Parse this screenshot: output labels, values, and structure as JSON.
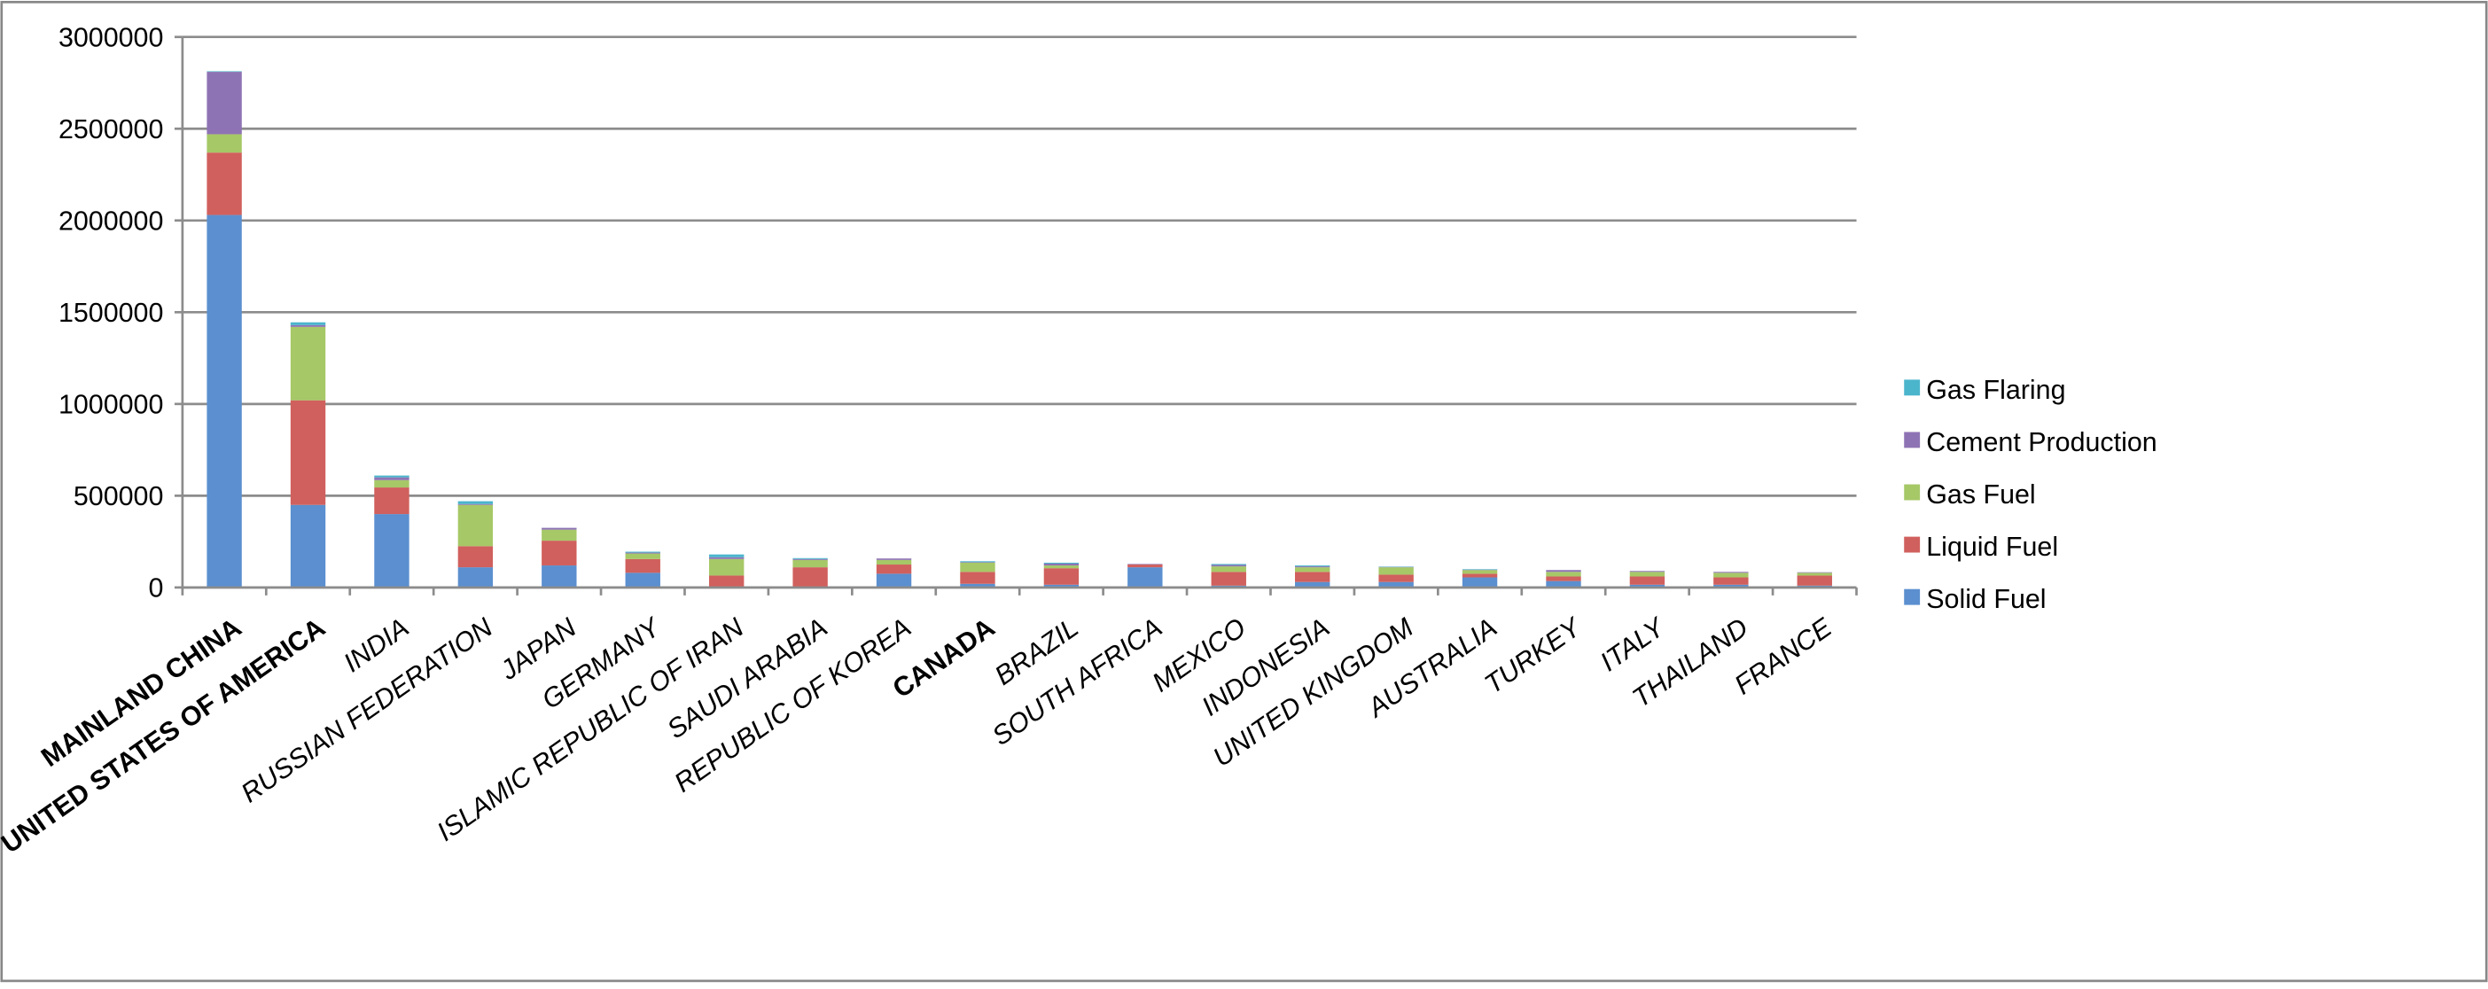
{
  "chart_data": {
    "type": "stacked_bar",
    "categories": [
      "MAINLAND CHINA",
      "UNITED STATES OF AMERICA",
      "INDIA",
      "RUSSIAN FEDERATION",
      "JAPAN",
      "GERMANY",
      "ISLAMIC REPUBLIC OF IRAN",
      "SAUDI ARABIA",
      "REPUBLIC OF KOREA",
      "CANADA",
      "BRAZIL",
      "SOUTH AFRICA",
      "MEXICO",
      "INDONESIA",
      "UNITED KINGDOM",
      "AUSTRALIA",
      "TURKEY",
      "ITALY",
      "THAILAND",
      "FRANCE"
    ],
    "category_styles": [
      "bold",
      "bold",
      "italic",
      "italic",
      "italic",
      "italic",
      "italic",
      "italic",
      "italic",
      "bold",
      "italic",
      "italic",
      "italic",
      "italic",
      "italic",
      "italic",
      "italic",
      "italic",
      "italic",
      "italic"
    ],
    "series": [
      {
        "name": "Solid Fuel",
        "color": "#5b8fcf",
        "values": [
          2030000,
          450000,
          400000,
          110000,
          120000,
          80000,
          5000,
          0,
          75000,
          20000,
          15000,
          110000,
          10000,
          30000,
          30000,
          55000,
          35000,
          15000,
          15000,
          10000
        ]
      },
      {
        "name": "Liquid Fuel",
        "color": "#d0605d",
        "values": [
          340000,
          570000,
          145000,
          115000,
          135000,
          75000,
          60000,
          110000,
          50000,
          65000,
          90000,
          15000,
          75000,
          55000,
          40000,
          20000,
          25000,
          45000,
          40000,
          55000
        ]
      },
      {
        "name": "Gas Fuel",
        "color": "#a6c867",
        "values": [
          100000,
          400000,
          40000,
          225000,
          60000,
          30000,
          90000,
          40000,
          25000,
          50000,
          15000,
          0,
          30000,
          25000,
          40000,
          20000,
          25000,
          25000,
          25000,
          15000
        ]
      },
      {
        "name": "Cement Production",
        "color": "#8e73b4",
        "values": [
          340000,
          10000,
          15000,
          5000,
          10000,
          5000,
          10000,
          5000,
          8000,
          3000,
          10000,
          3000,
          8000,
          5000,
          2000,
          2000,
          10000,
          5000,
          5000,
          3000
        ]
      },
      {
        "name": "Gas Flaring",
        "color": "#4bb5cc",
        "values": [
          3000,
          15000,
          10000,
          15000,
          0,
          5000,
          15000,
          5000,
          0,
          5000,
          5000,
          0,
          5000,
          5000,
          2000,
          3000,
          0,
          0,
          0,
          0
        ]
      }
    ],
    "ylim": [
      0,
      3000000
    ],
    "yticks": [
      0,
      500000,
      1000000,
      1500000,
      2000000,
      2500000,
      3000000
    ],
    "grid": true,
    "legend": "right"
  }
}
